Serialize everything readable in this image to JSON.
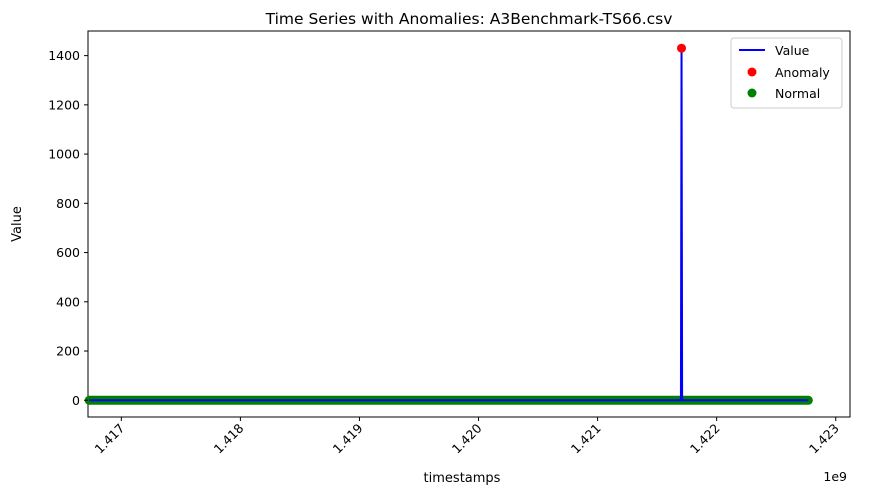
{
  "chart_data": {
    "type": "line",
    "title": "Time Series with Anomalies: A3Benchmark-TS66.csv",
    "xlabel": "timestamps",
    "ylabel": "Value",
    "x_offset_label": "1e9",
    "xlim": [
      1.41672,
      1.42312
    ],
    "ylim": [
      -68,
      1500
    ],
    "x_ticks": [
      1.417,
      1.418,
      1.419,
      1.42,
      1.421,
      1.422,
      1.423
    ],
    "x_tick_labels": [
      "1.417",
      "1.418",
      "1.419",
      "1.420",
      "1.421",
      "1.422",
      "1.423"
    ],
    "y_ticks": [
      0,
      200,
      400,
      600,
      800,
      1000,
      1200,
      1400
    ],
    "y_tick_labels": [
      "0",
      "200",
      "400",
      "600",
      "800",
      "1000",
      "1200",
      "1400"
    ],
    "legend_position": "top-right",
    "series": [
      {
        "name": "Value",
        "kind": "line",
        "color": "#0000ff",
        "x": [
          1.41673,
          1.4217,
          1.421705,
          1.42171,
          1.42277
        ],
        "values": [
          0,
          0,
          1430,
          0,
          0
        ]
      },
      {
        "name": "Anomaly",
        "kind": "scatter",
        "color": "#ff0000",
        "x": [
          1.421705
        ],
        "values": [
          1430
        ]
      },
      {
        "name": "Normal",
        "kind": "scatter",
        "color": "#008000",
        "x_range": [
          1.41673,
          1.42277
        ],
        "value": 0
      }
    ]
  }
}
